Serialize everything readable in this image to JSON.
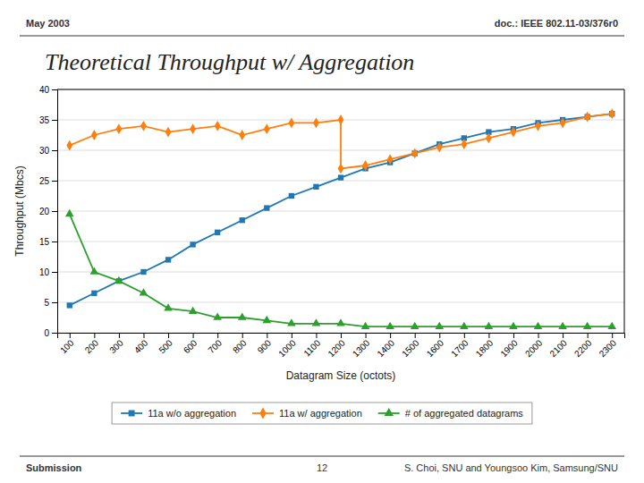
{
  "chart_data": {
    "type": "line",
    "title": "Theoretical Throughput w/ Aggregation",
    "annotations": [
      "May 2003",
      "doc.: IEEE 802.11-03/376r0",
      "Submission",
      "12",
      "S. Choi, SNU and Youngsoo Kim, Samsung/SNU"
    ],
    "xlabel": "Datagram Size (octots)",
    "ylabel": "Throughput (Mbcs)",
    "xlim": [
      50,
      2350
    ],
    "xticks": [
      100,
      200,
      300,
      400,
      500,
      600,
      700,
      800,
      900,
      1000,
      1100,
      1200,
      1300,
      1400,
      1500,
      1600,
      1700,
      1800,
      1900,
      2000,
      2100,
      2200,
      2300
    ],
    "ylim": [
      0,
      40
    ],
    "yticks": [
      0,
      5,
      10,
      15,
      20,
      25,
      30,
      35,
      40
    ],
    "grid": true,
    "legend": "bottom",
    "series": [
      {
        "name": "11a w/o aggregation",
        "marker": "square",
        "x": [
          100,
          200,
          300,
          400,
          500,
          600,
          700,
          800,
          900,
          1000,
          1100,
          1200,
          1300,
          1400,
          1500,
          1600,
          1700,
          1800,
          1900,
          2000,
          2100,
          2200,
          2300
        ],
        "values": [
          4.5,
          6.5,
          8.5,
          10.0,
          12.0,
          14.5,
          16.5,
          18.5,
          20.5,
          22.5,
          24.0,
          25.5,
          27.0,
          28.0,
          29.5,
          31.0,
          32.0,
          33.0,
          33.5,
          34.5,
          35.0,
          35.5,
          36.0
        ]
      },
      {
        "name": "11a w/ aggregation",
        "marker": "diamond",
        "x": [
          100,
          200,
          300,
          400,
          500,
          600,
          700,
          800,
          900,
          1000,
          1100,
          1200,
          1200,
          1300,
          1400,
          1500,
          1600,
          1700,
          1800,
          1900,
          2000,
          2100,
          2200,
          2300
        ],
        "values": [
          30.8,
          32.5,
          33.5,
          34.0,
          33.0,
          33.5,
          34.0,
          32.5,
          33.5,
          34.5,
          34.5,
          35.0,
          27.0,
          27.5,
          28.5,
          29.5,
          30.5,
          31.0,
          32.0,
          33.0,
          34.0,
          34.5,
          35.5,
          36.0
        ]
      },
      {
        "name": "# of aggregated datagrams",
        "marker": "triangle",
        "x": [
          100,
          200,
          300,
          400,
          500,
          600,
          700,
          800,
          900,
          1000,
          1100,
          1200,
          1300,
          1400,
          1500,
          1600,
          1700,
          1800,
          1900,
          2000,
          2100,
          2200,
          2300
        ],
        "values": [
          19.5,
          10.0,
          8.5,
          6.5,
          4.0,
          3.5,
          2.5,
          2.5,
          2.0,
          1.5,
          1.5,
          1.5,
          1.0,
          1.0,
          1.0,
          1.0,
          1.0,
          1.0,
          1.0,
          1.0,
          1.0,
          1.0,
          1.0
        ]
      }
    ]
  }
}
